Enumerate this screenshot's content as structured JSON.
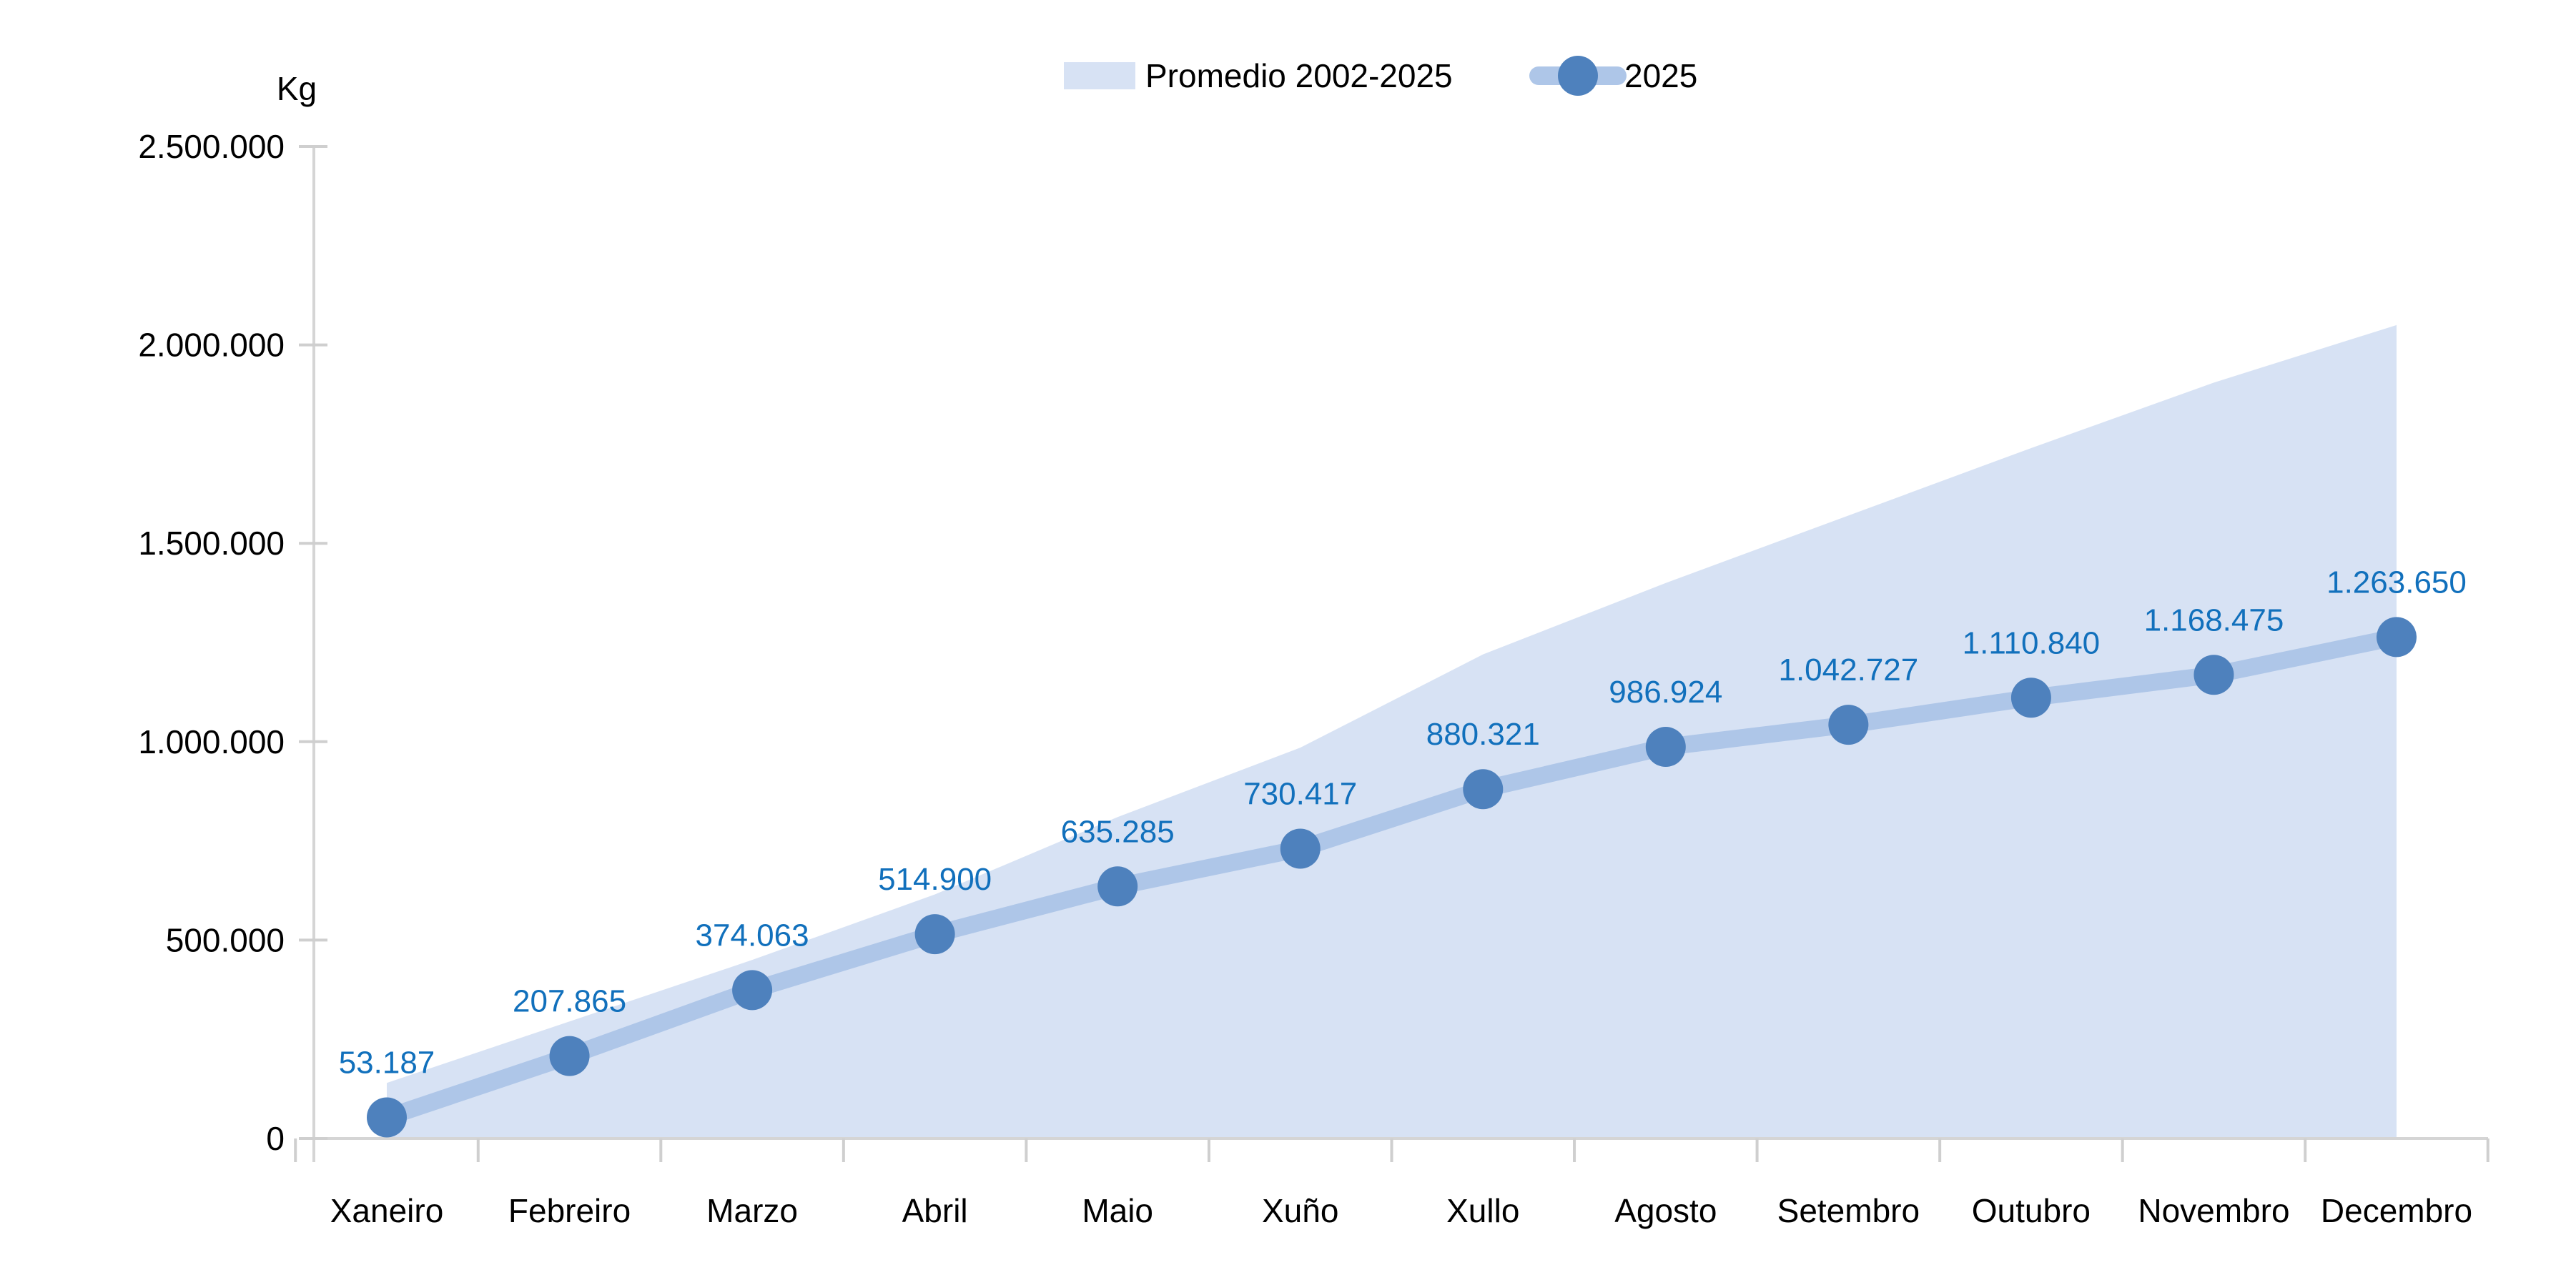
{
  "chart_data": {
    "type": "line",
    "title": "",
    "ylabel": "Kg",
    "xlabel": "",
    "grid": false,
    "ylim": [
      0,
      2500000
    ],
    "categories": [
      "Xaneiro",
      "Febreiro",
      "Marzo",
      "Abril",
      "Maio",
      "Xuño",
      "Xullo",
      "Agosto",
      "Setembro",
      "Outubro",
      "Novembro",
      "Decembro"
    ],
    "series": [
      {
        "name": "Promedio 2002-2025",
        "type": "area",
        "color": "#D7E2F4",
        "note": "unlabeled band; values estimated from pixels",
        "values": [
          140000,
          295000,
          450000,
          615000,
          810000,
          985000,
          1220000,
          1400000,
          1570000,
          1740000,
          1905000,
          2050000
        ]
      },
      {
        "name": "2025",
        "type": "line",
        "line_color": "#AEC6E8",
        "marker_color": "#4E81BD",
        "values": [
          53187,
          207865,
          374063,
          514900,
          635285,
          730417,
          880321,
          986924,
          1042727,
          1110840,
          1168475,
          1263650
        ],
        "labels": [
          "53.187",
          "207.865",
          "374.063",
          "514.900",
          "635.285",
          "730.417",
          "880.321",
          "986.924",
          "1.042.727",
          "1.110.840",
          "1.168.475",
          "1.263.650"
        ]
      }
    ],
    "yticks": {
      "values": [
        0,
        500000,
        1000000,
        1500000,
        2000000,
        2500000
      ],
      "labels": [
        "0",
        "500.000",
        "1.000.000",
        "1.500.000",
        "2.000.000",
        "2.500.000"
      ]
    },
    "legend": {
      "position": "top-center",
      "items": [
        {
          "label": "Promedio 2002-2025",
          "swatch": "area"
        },
        {
          "label": "2025",
          "swatch": "line-marker"
        }
      ]
    },
    "colors": {
      "data_label": "#1170BC",
      "axis_line": "#D5D5D5",
      "tick": "#CFCFCF",
      "text": "#000000",
      "area_fill": "#D7E2F4",
      "line": "#AEC6E8",
      "marker": "#4E81BD"
    }
  }
}
